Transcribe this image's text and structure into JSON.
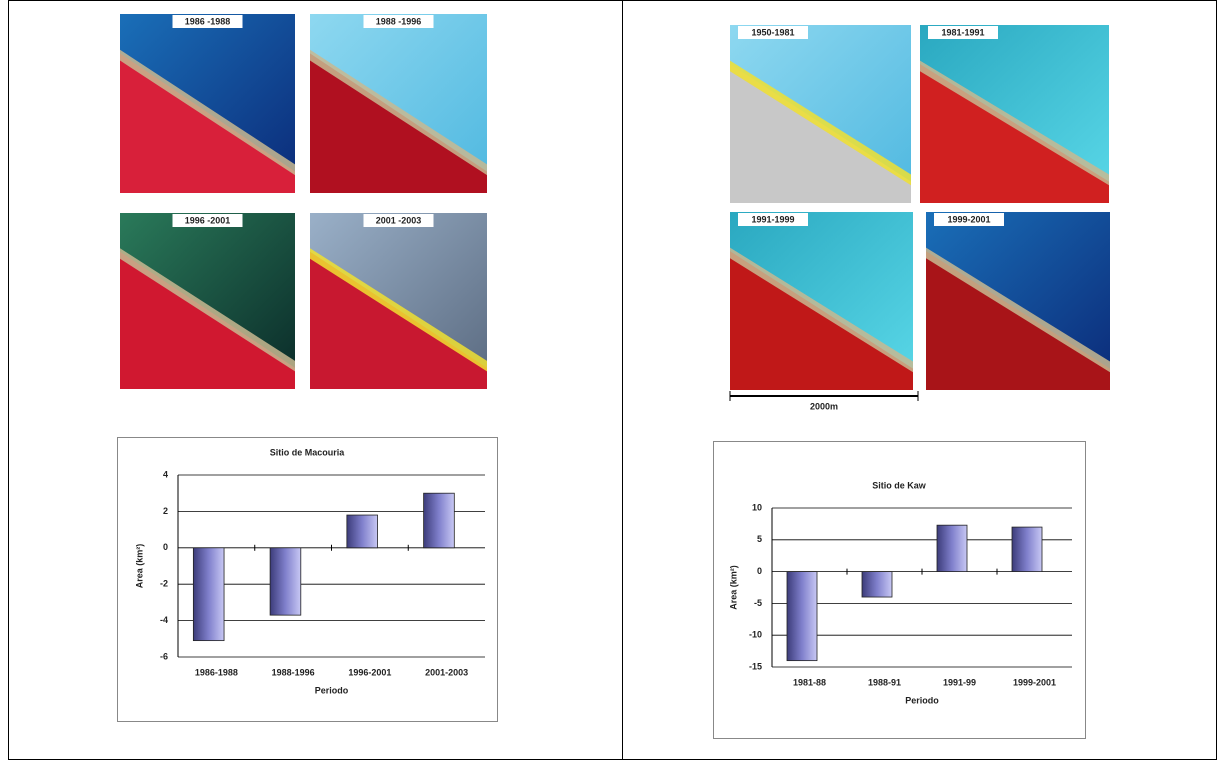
{
  "panels": [
    {
      "images": [
        "1986 -1988",
        "1988 -1996",
        "1996 -2001",
        "2001 -2003"
      ]
    },
    {
      "images": [
        "1950-1981",
        "1981-1991",
        "1991-1999",
        "1999-2001"
      ],
      "scale_label": "2000m"
    }
  ],
  "chart_data": [
    {
      "type": "bar",
      "title": "Sitio de Macouria",
      "y_label": "Area (km²)",
      "x_label": "Periodo",
      "categories": [
        "1986-1988",
        "1988-1996",
        "1996-2001",
        "2001-2003"
      ],
      "values": [
        -5.1,
        -3.7,
        1.8,
        3.0
      ],
      "ylim": [
        -6,
        4
      ],
      "yticks": [
        -6,
        -4,
        -2,
        0,
        2,
        4
      ],
      "grid": true
    },
    {
      "type": "bar",
      "title": "Sitio de Kaw",
      "y_label": "Area (km²)",
      "x_label": "Periodo",
      "categories": [
        "1981-88",
        "1988-91",
        "1991-99",
        "1999-2001"
      ],
      "values": [
        -14,
        -4,
        7.3,
        7
      ],
      "ylim": [
        -15,
        10
      ],
      "yticks": [
        -15,
        -10,
        -5,
        0,
        5,
        10
      ],
      "grid": true
    }
  ]
}
